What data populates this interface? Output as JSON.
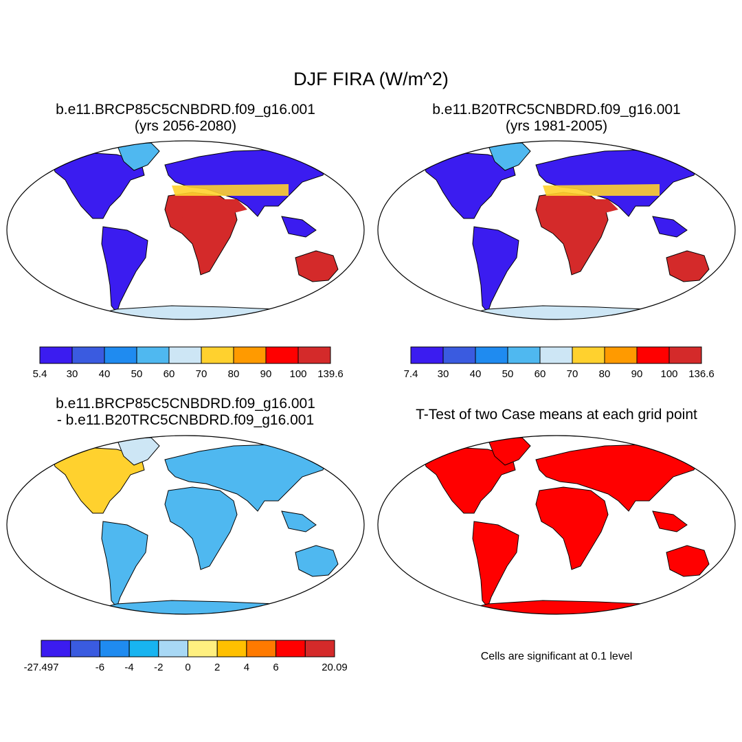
{
  "title": "DJF FIRA (W/m^2)",
  "panels": {
    "future": {
      "title_line1": "b.e11.BRCP85C5CNBDRD.f09_g16.001",
      "title_line2": "(yrs 2056-2080)",
      "colorbar": {
        "labels": [
          "5.4",
          "30",
          "40",
          "50",
          "60",
          "70",
          "80",
          "90",
          "100",
          "139.6"
        ],
        "colors": [
          "#3b1cf0",
          "#3a5be0",
          "#1f8bf0",
          "#4fb8f0",
          "#cde6f5",
          "#ffd12e",
          "#ff9a00",
          "#ff0000",
          "#d42a2a"
        ]
      }
    },
    "historical": {
      "title_line1": "b.e11.B20TRC5CNBDRD.f09_g16.001",
      "title_line2": "(yrs 1981-2005)",
      "colorbar": {
        "labels": [
          "7.4",
          "30",
          "40",
          "50",
          "60",
          "70",
          "80",
          "90",
          "100",
          "136.6"
        ],
        "colors": [
          "#3b1cf0",
          "#3a5be0",
          "#1f8bf0",
          "#4fb8f0",
          "#cde6f5",
          "#ffd12e",
          "#ff9a00",
          "#ff0000",
          "#d42a2a"
        ]
      }
    },
    "difference": {
      "title_line1": "b.e11.BRCP85C5CNBDRD.f09_g16.001",
      "title_line2": "- b.e11.B20TRC5CNBDRD.f09_g16.001",
      "colorbar": {
        "labels": [
          "-27.497",
          "",
          "-6",
          "-4",
          "-2",
          "0",
          "2",
          "4",
          "6",
          "",
          "20.09"
        ],
        "colors": [
          "#3b1cf0",
          "#3a5be0",
          "#1f8bf0",
          "#18b4f0",
          "#a8d8f5",
          "#fff080",
          "#ffc000",
          "#ff7a00",
          "#ff0000",
          "#d42a2a"
        ]
      }
    },
    "ttest": {
      "title": "T-Test of two Case means at each grid point",
      "note": "Cells are significant at 0.1 level",
      "significant_color": "#ff0000"
    }
  },
  "map_colors": {
    "cold": "#3b1cf0",
    "cool": "#4fb8f0",
    "warm": "#ffd12e",
    "hot": "#d42a2a",
    "pale": "#cde6f5"
  }
}
